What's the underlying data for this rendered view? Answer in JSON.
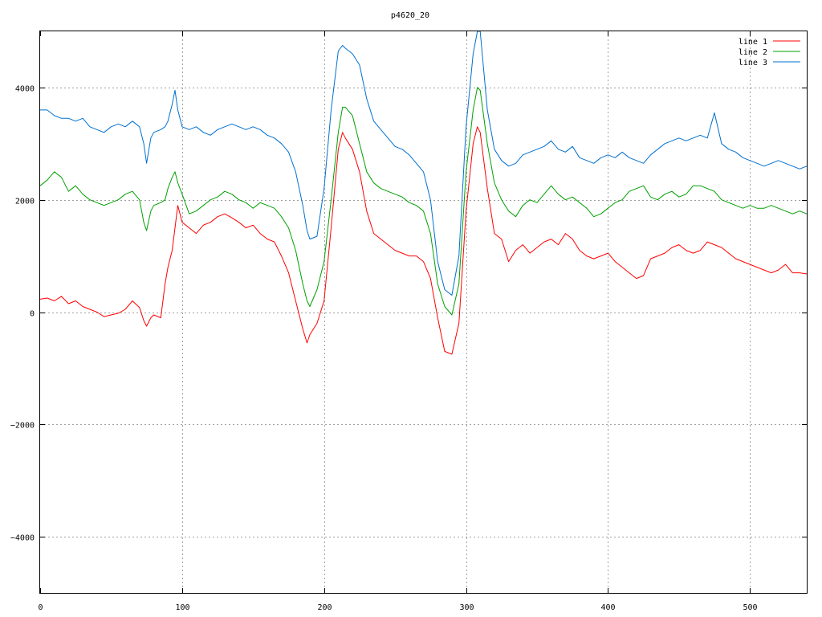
{
  "chart_data": {
    "type": "line",
    "title": "p4620_20",
    "xlabel": "",
    "ylabel": "",
    "xlim": [
      0,
      540
    ],
    "ylim": [
      -5000,
      5000
    ],
    "x_ticks": [
      0,
      100,
      200,
      300,
      400,
      500
    ],
    "y_ticks": [
      -4000,
      -2000,
      0,
      2000,
      4000
    ],
    "grid": true,
    "legend_position": "top-right",
    "series": [
      {
        "name": "line 1",
        "color": "#ff0000",
        "x": [
          0,
          5,
          10,
          15,
          20,
          25,
          30,
          35,
          40,
          45,
          50,
          55,
          60,
          65,
          70,
          73,
          75,
          78,
          80,
          85,
          88,
          90,
          93,
          95,
          97,
          100,
          105,
          110,
          115,
          120,
          125,
          130,
          135,
          140,
          145,
          150,
          155,
          160,
          165,
          170,
          175,
          180,
          185,
          188,
          190,
          195,
          200,
          205,
          210,
          213,
          215,
          220,
          225,
          230,
          235,
          240,
          245,
          250,
          255,
          260,
          265,
          270,
          275,
          280,
          285,
          290,
          295,
          300,
          305,
          308,
          310,
          315,
          320,
          325,
          330,
          335,
          340,
          345,
          350,
          355,
          360,
          365,
          370,
          375,
          380,
          385,
          390,
          395,
          400,
          405,
          410,
          415,
          420,
          425,
          430,
          435,
          440,
          445,
          450,
          455,
          460,
          465,
          470,
          475,
          480,
          485,
          490,
          495,
          500,
          505,
          510,
          515,
          520,
          525,
          530,
          535,
          540
        ],
        "values": [
          230,
          250,
          200,
          280,
          150,
          200,
          100,
          50,
          0,
          -80,
          -50,
          -20,
          50,
          200,
          80,
          -150,
          -250,
          -100,
          -50,
          -100,
          500,
          800,
          1100,
          1500,
          1900,
          1600,
          1500,
          1400,
          1550,
          1600,
          1700,
          1750,
          1680,
          1600,
          1500,
          1550,
          1400,
          1300,
          1250,
          1000,
          700,
          200,
          -300,
          -550,
          -400,
          -200,
          200,
          1500,
          2900,
          3200,
          3100,
          2900,
          2500,
          1800,
          1400,
          1300,
          1200,
          1100,
          1050,
          1000,
          1000,
          900,
          600,
          -100,
          -700,
          -750,
          -200,
          1800,
          3000,
          3300,
          3200,
          2200,
          1400,
          1300,
          900,
          1100,
          1200,
          1050,
          1150,
          1250,
          1300,
          1200,
          1400,
          1300,
          1100,
          1000,
          950,
          1000,
          1050,
          900,
          800,
          700,
          600,
          650,
          950,
          1000,
          1050,
          1150,
          1200,
          1100,
          1050,
          1100,
          1250,
          1200,
          1150,
          1050,
          950,
          900,
          850,
          800,
          750,
          700,
          750,
          850,
          700,
          700,
          680
        ]
      },
      {
        "name": "line 2",
        "color": "#00a000",
        "x": [
          0,
          5,
          10,
          15,
          20,
          25,
          30,
          35,
          40,
          45,
          50,
          55,
          60,
          65,
          70,
          73,
          75,
          78,
          80,
          85,
          88,
          90,
          93,
          95,
          97,
          100,
          105,
          110,
          115,
          120,
          125,
          130,
          135,
          140,
          145,
          150,
          155,
          160,
          165,
          170,
          175,
          180,
          185,
          188,
          190,
          195,
          200,
          205,
          210,
          213,
          215,
          220,
          225,
          230,
          235,
          240,
          245,
          250,
          255,
          260,
          265,
          270,
          275,
          280,
          285,
          290,
          295,
          300,
          305,
          308,
          310,
          315,
          320,
          325,
          330,
          335,
          340,
          345,
          350,
          355,
          360,
          365,
          370,
          375,
          380,
          385,
          390,
          395,
          400,
          405,
          410,
          415,
          420,
          425,
          430,
          435,
          440,
          445,
          450,
          455,
          460,
          465,
          470,
          475,
          480,
          485,
          490,
          495,
          500,
          505,
          510,
          515,
          520,
          525,
          530,
          535,
          540
        ],
        "values": [
          2250,
          2350,
          2500,
          2400,
          2150,
          2250,
          2100,
          2000,
          1950,
          1900,
          1950,
          2000,
          2100,
          2150,
          2000,
          1600,
          1450,
          1800,
          1900,
          1950,
          2000,
          2200,
          2400,
          2500,
          2300,
          2100,
          1750,
          1800,
          1900,
          2000,
          2050,
          2150,
          2100,
          2000,
          1950,
          1850,
          1950,
          1900,
          1850,
          1700,
          1500,
          1100,
          500,
          200,
          100,
          400,
          900,
          2000,
          3200,
          3650,
          3650,
          3500,
          3000,
          2500,
          2300,
          2200,
          2150,
          2100,
          2050,
          1950,
          1900,
          1800,
          1400,
          500,
          100,
          -50,
          500,
          2500,
          3600,
          4000,
          3950,
          3000,
          2300,
          2000,
          1800,
          1700,
          1900,
          2000,
          1950,
          2100,
          2250,
          2100,
          2000,
          2050,
          1950,
          1850,
          1700,
          1750,
          1850,
          1950,
          2000,
          2150,
          2200,
          2250,
          2050,
          2000,
          2100,
          2150,
          2050,
          2100,
          2250,
          2250,
          2200,
          2150,
          2000,
          1950,
          1900,
          1850,
          1900,
          1850,
          1850,
          1900,
          1850,
          1800,
          1750,
          1800,
          1750
        ]
      },
      {
        "name": "line 3",
        "color": "#0070d0",
        "x": [
          0,
          5,
          10,
          15,
          20,
          25,
          30,
          35,
          40,
          45,
          50,
          55,
          60,
          65,
          70,
          73,
          75,
          78,
          80,
          85,
          88,
          90,
          93,
          95,
          97,
          100,
          105,
          110,
          115,
          120,
          125,
          130,
          135,
          140,
          145,
          150,
          155,
          160,
          165,
          170,
          175,
          180,
          185,
          188,
          190,
          195,
          200,
          205,
          210,
          213,
          215,
          220,
          225,
          230,
          235,
          240,
          245,
          250,
          255,
          260,
          265,
          270,
          275,
          280,
          285,
          290,
          295,
          300,
          305,
          308,
          310,
          315,
          320,
          325,
          330,
          335,
          340,
          345,
          350,
          355,
          360,
          365,
          370,
          375,
          380,
          385,
          390,
          395,
          400,
          405,
          410,
          415,
          420,
          425,
          430,
          435,
          440,
          445,
          450,
          455,
          460,
          465,
          470,
          475,
          480,
          485,
          490,
          495,
          500,
          505,
          510,
          515,
          520,
          525,
          530,
          535,
          540
        ],
        "values": [
          3600,
          3600,
          3500,
          3450,
          3450,
          3400,
          3450,
          3300,
          3250,
          3200,
          3300,
          3350,
          3300,
          3400,
          3300,
          3000,
          2650,
          3100,
          3200,
          3250,
          3300,
          3400,
          3700,
          3950,
          3600,
          3300,
          3250,
          3300,
          3200,
          3150,
          3250,
          3300,
          3350,
          3300,
          3250,
          3300,
          3250,
          3150,
          3100,
          3000,
          2850,
          2500,
          1900,
          1450,
          1300,
          1350,
          2200,
          3600,
          4650,
          4750,
          4700,
          4600,
          4400,
          3800,
          3400,
          3250,
          3100,
          2950,
          2900,
          2800,
          2650,
          2500,
          2000,
          900,
          400,
          300,
          1000,
          3300,
          4600,
          5000,
          5000,
          3600,
          2900,
          2700,
          2600,
          2650,
          2800,
          2850,
          2900,
          2950,
          3050,
          2900,
          2850,
          2950,
          2750,
          2700,
          2650,
          2750,
          2800,
          2750,
          2850,
          2750,
          2700,
          2650,
          2800,
          2900,
          3000,
          3050,
          3100,
          3050,
          3100,
          3150,
          3100,
          3550,
          3000,
          2900,
          2850,
          2750,
          2700,
          2650,
          2600,
          2650,
          2700,
          2650,
          2600,
          2550,
          2600
        ]
      }
    ]
  }
}
